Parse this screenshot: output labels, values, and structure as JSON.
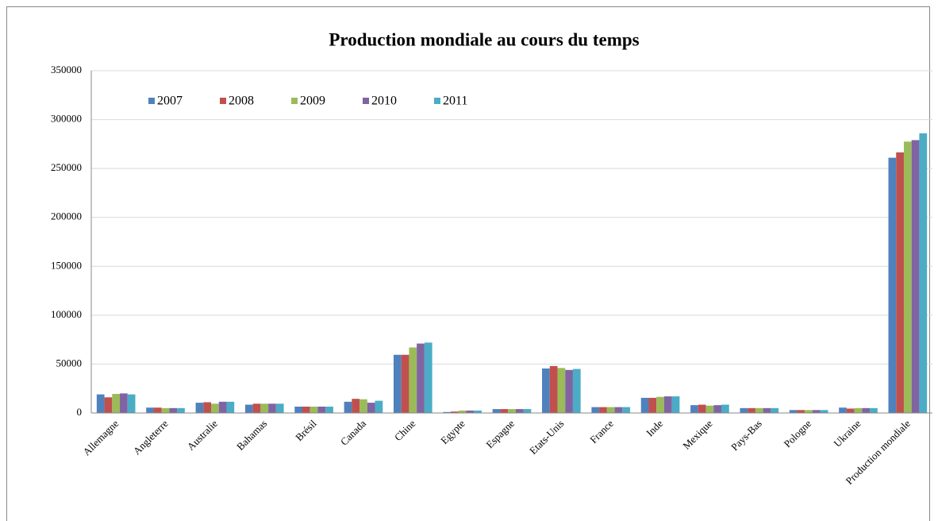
{
  "chart_data": {
    "type": "bar",
    "title": "Production mondiale au cours du temps",
    "categories": [
      "Allemagne",
      "Angleterre",
      "Australie",
      "Bahamas",
      "Brésil",
      "Canada",
      "Chine",
      "Egypte",
      "Espagne",
      "Etats-Unis",
      "France",
      "Inde",
      "Mexique",
      "Pays-Bas",
      "Pologne",
      "Ukraine",
      "Production mondiale"
    ],
    "series": [
      {
        "name": "2007",
        "color": "#4f81bd",
        "values": [
          19000,
          5500,
          10500,
          8500,
          6500,
          11500,
          59500,
          1000,
          4000,
          45500,
          6000,
          15500,
          8000,
          5000,
          3000,
          5500,
          261000
        ]
      },
      {
        "name": "2008",
        "color": "#c0504d",
        "values": [
          16000,
          5500,
          11000,
          9500,
          6500,
          14500,
          59500,
          1500,
          4000,
          48000,
          6000,
          15500,
          8500,
          5000,
          3000,
          4500,
          266500
        ]
      },
      {
        "name": "2009",
        "color": "#9bbb59",
        "values": [
          19500,
          5000,
          9500,
          9500,
          6500,
          14000,
          67000,
          2500,
          4000,
          46000,
          6000,
          16500,
          7500,
          5000,
          3000,
          5000,
          277500
        ]
      },
      {
        "name": "2010",
        "color": "#8064a2",
        "values": [
          20000,
          5000,
          11500,
          9500,
          6500,
          10500,
          71000,
          2500,
          4000,
          44000,
          6000,
          17000,
          8000,
          5000,
          3000,
          5000,
          279000
        ]
      },
      {
        "name": "2011",
        "color": "#4bacc6",
        "values": [
          19000,
          5000,
          11500,
          9500,
          6500,
          12500,
          72000,
          2500,
          4000,
          45000,
          6000,
          17000,
          8500,
          5000,
          3000,
          5000,
          286000
        ]
      }
    ],
    "ylim": [
      0,
      350000
    ],
    "yticks": [
      0,
      50000,
      100000,
      150000,
      200000,
      250000,
      300000,
      350000
    ],
    "grid": true,
    "legend": "top-left"
  }
}
